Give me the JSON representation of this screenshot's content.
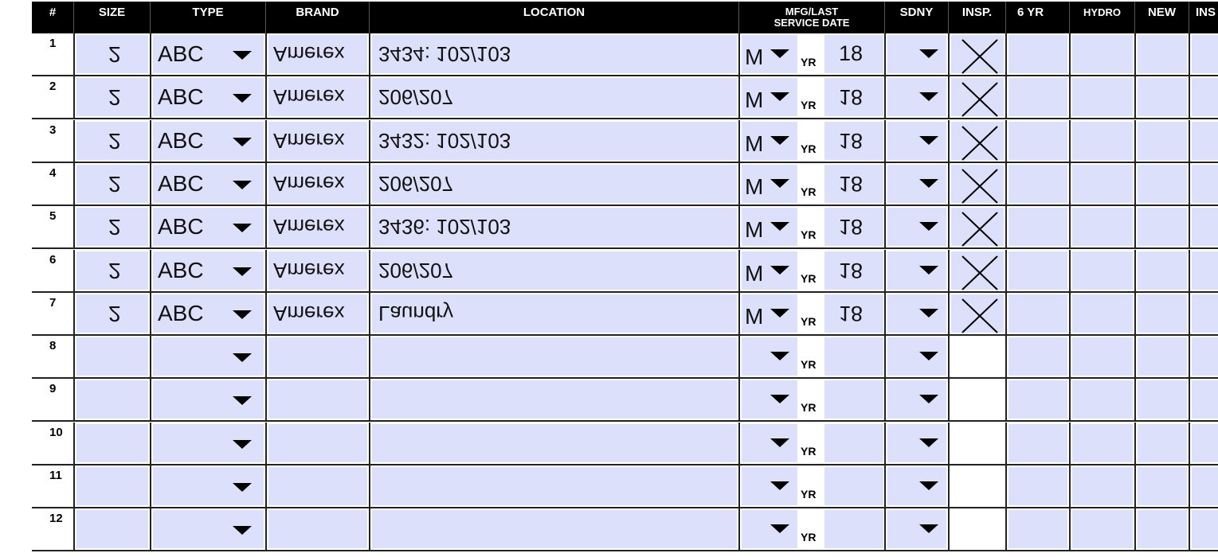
{
  "headers": {
    "num": "#",
    "size": "SIZE",
    "type": "TYPE",
    "brand": "BRAND",
    "location": "LOCATION",
    "mfg": "MFG/LAST SERVICE DATE",
    "sdny": "SDNY",
    "insp": "INSP.",
    "six_yr": "6 YR",
    "hydro": "HYDRO",
    "new": "NEW",
    "ins": "INS"
  },
  "yr_label": "YR",
  "rows": [
    {
      "num": "1",
      "size": "2",
      "type": "ABC",
      "brand": "Amerex",
      "location": "3434: 102/103",
      "month": "M",
      "year": "18",
      "year_flipped": false,
      "insp": true
    },
    {
      "num": "2",
      "size": "2",
      "type": "ABC",
      "brand": "Amerex",
      "location": "206/207",
      "month": "M",
      "year": "18",
      "year_flipped": true,
      "insp": true
    },
    {
      "num": "3",
      "size": "2",
      "type": "ABC",
      "brand": "Amerex",
      "location": "3432: 102/103",
      "month": "M",
      "year": "18",
      "year_flipped": true,
      "insp": true
    },
    {
      "num": "4",
      "size": "2",
      "type": "ABC",
      "brand": "Amerex",
      "location": "206/207",
      "month": "M",
      "year": "18",
      "year_flipped": true,
      "insp": true
    },
    {
      "num": "5",
      "size": "2",
      "type": "ABC",
      "brand": "Amerex",
      "location": "3436: 102/103",
      "month": "M",
      "year": "18",
      "year_flipped": true,
      "insp": true
    },
    {
      "num": "6",
      "size": "2",
      "type": "ABC",
      "brand": "Amerex",
      "location": "206/207",
      "month": "M",
      "year": "18",
      "year_flipped": true,
      "insp": true
    },
    {
      "num": "7",
      "size": "2",
      "type": "ABC",
      "brand": "Amerex",
      "location": "Laundry",
      "month": "M",
      "year": "18",
      "year_flipped": true,
      "insp": true
    },
    {
      "num": "8",
      "size": "",
      "type": "",
      "brand": "",
      "location": "",
      "month": "",
      "year": "",
      "insp": false
    },
    {
      "num": "9",
      "size": "",
      "type": "",
      "brand": "",
      "location": "",
      "month": "",
      "year": "",
      "insp": false
    },
    {
      "num": "10",
      "size": "",
      "type": "",
      "brand": "",
      "location": "",
      "month": "",
      "year": "",
      "insp": false
    },
    {
      "num": "11",
      "size": "",
      "type": "",
      "brand": "",
      "location": "",
      "month": "",
      "year": "",
      "insp": false
    },
    {
      "num": "12",
      "size": "",
      "type": "",
      "brand": "",
      "location": "",
      "month": "",
      "year": "",
      "insp": false
    }
  ],
  "colors": {
    "field": "#dde0fb",
    "header": "#000000"
  }
}
